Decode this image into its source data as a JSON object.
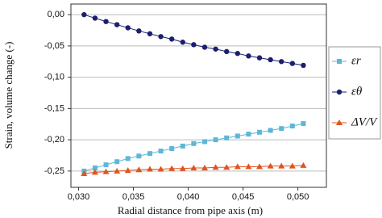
{
  "chart_data": {
    "type": "line",
    "xlabel": "Radial distance from pipe axis (m)",
    "ylabel": "Strain, volume change (-)",
    "x": [
      0.0305,
      0.0315,
      0.0325,
      0.0335,
      0.0345,
      0.0355,
      0.0365,
      0.0375,
      0.0385,
      0.0395,
      0.0405,
      0.0415,
      0.0425,
      0.0435,
      0.0445,
      0.0455,
      0.0465,
      0.0475,
      0.0485,
      0.0495,
      0.0505
    ],
    "series": [
      {
        "name": "εr",
        "color": "#5db7d6",
        "marker": "square",
        "values": [
          -0.25,
          -0.245,
          -0.24,
          -0.235,
          -0.23,
          -0.226,
          -0.222,
          -0.218,
          -0.214,
          -0.21,
          -0.206,
          -0.203,
          -0.2,
          -0.197,
          -0.194,
          -0.191,
          -0.188,
          -0.185,
          -0.182,
          -0.178,
          -0.174
        ]
      },
      {
        "name": "εθ",
        "color": "#1a1f6e",
        "marker": "circle",
        "values": [
          0.0,
          -0.0055,
          -0.011,
          -0.016,
          -0.021,
          -0.026,
          -0.0305,
          -0.035,
          -0.039,
          -0.044,
          -0.048,
          -0.052,
          -0.055,
          -0.059,
          -0.062,
          -0.066,
          -0.069,
          -0.072,
          -0.075,
          -0.078,
          -0.081
        ]
      },
      {
        "name": "ΔV/V",
        "color": "#e0531f",
        "marker": "triangle",
        "values": [
          -0.254,
          -0.252,
          -0.251,
          -0.25,
          -0.249,
          -0.248,
          -0.247,
          -0.247,
          -0.246,
          -0.246,
          -0.245,
          -0.245,
          -0.244,
          -0.244,
          -0.243,
          -0.243,
          -0.243,
          -0.242,
          -0.242,
          -0.242,
          -0.241
        ]
      }
    ],
    "xlim": [
      0.0293,
      0.0526
    ],
    "ylim": [
      -0.276,
      0.017
    ],
    "xticks": [
      {
        "value": 0.03,
        "label": "0,030"
      },
      {
        "value": 0.035,
        "label": "0,035"
      },
      {
        "value": 0.04,
        "label": "0,040"
      },
      {
        "value": 0.045,
        "label": "0,045"
      },
      {
        "value": 0.05,
        "label": "0,050"
      }
    ],
    "yticks": [
      {
        "value": 0,
        "label": "0,00"
      },
      {
        "value": -0.05,
        "label": "-0,05"
      },
      {
        "value": -0.1,
        "label": "-0,10"
      },
      {
        "value": -0.15,
        "label": "-0,15"
      },
      {
        "value": -0.2,
        "label": "-0,20"
      },
      {
        "value": -0.25,
        "label": "-0,25"
      }
    ],
    "grid": true
  }
}
